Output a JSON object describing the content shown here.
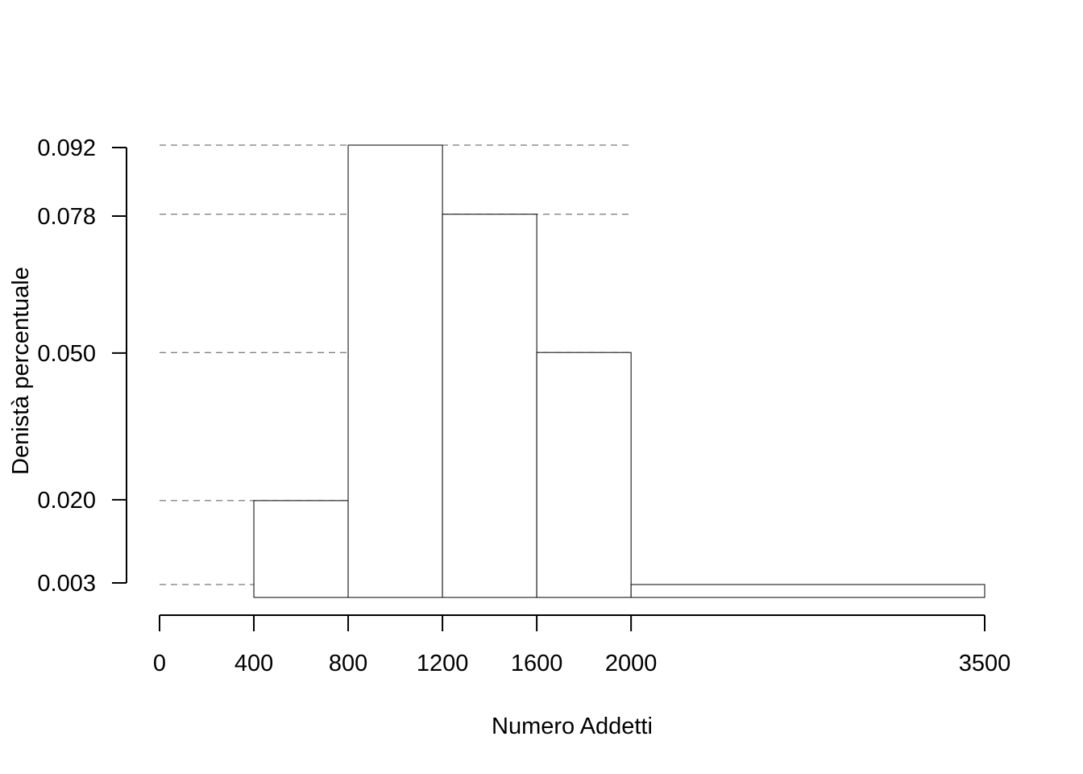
{
  "chart_data": {
    "type": "bar",
    "title": "",
    "xlabel": "Numero Addetti",
    "ylabel": "Denistà percentuale",
    "bins": [
      {
        "from": 400,
        "to": 800,
        "density": 0.02
      },
      {
        "from": 800,
        "to": 1200,
        "density": 0.092
      },
      {
        "from": 1200,
        "to": 1600,
        "density": 0.078
      },
      {
        "from": 1600,
        "to": 2000,
        "density": 0.05
      },
      {
        "from": 2000,
        "to": 3500,
        "density": 0.003
      }
    ],
    "x_ticks": [
      0,
      400,
      800,
      1200,
      1600,
      2000,
      3500
    ],
    "x_tick_labels": [
      "0",
      "400",
      "800",
      "1200",
      "1600",
      "2000",
      "3500"
    ],
    "y_ticks": [
      0.003,
      0.02,
      0.05,
      0.078,
      0.092
    ],
    "y_tick_labels": [
      "0.003",
      "0.020",
      "0.050",
      "0.078",
      "0.092"
    ],
    "xlim": [
      0,
      3500
    ],
    "ylim": [
      0,
      0.092
    ],
    "grid": false,
    "reference_lines": "dashed horizontal lines at each y tick value",
    "colors": {
      "bar_fill": "#ffffff",
      "bar_stroke": "#000000",
      "line": "#000000"
    }
  }
}
